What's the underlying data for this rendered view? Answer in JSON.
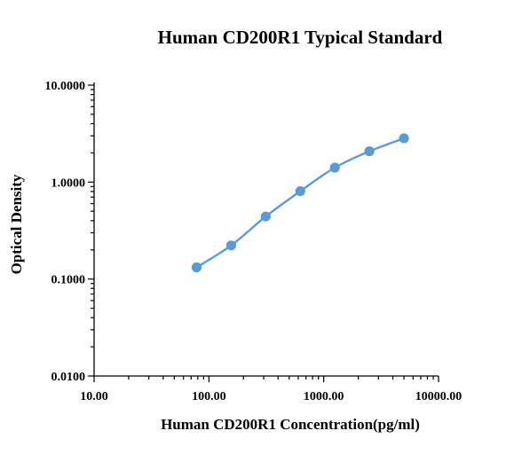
{
  "chart_data": {
    "type": "scatter",
    "title": "Human CD200R1 Typical Standard",
    "xlabel": "Human CD200R1  Concentration(pg/ml)",
    "ylabel": "Optical Density",
    "x_scale": "log",
    "y_scale": "log",
    "xlim": [
      10,
      10000
    ],
    "ylim": [
      0.01,
      10
    ],
    "x_ticks": [
      10,
      100,
      1000,
      10000
    ],
    "x_tick_labels": [
      "10.00",
      "100.00",
      "1000.00",
      "10000.00"
    ],
    "y_ticks": [
      0.01,
      0.1,
      1,
      10
    ],
    "y_tick_labels": [
      "0.0100",
      "0.1000",
      "1.0000",
      "10.0000"
    ],
    "grid": false,
    "legend": "none",
    "colors": {
      "series": "#5b9bd5",
      "axis": "#000000"
    },
    "series": [
      {
        "x": [
          78.13,
          156.25,
          312.5,
          625,
          1250,
          2500,
          5000
        ],
        "y": [
          0.132,
          0.222,
          0.442,
          0.806,
          1.41,
          2.08,
          2.83
        ]
      }
    ]
  }
}
